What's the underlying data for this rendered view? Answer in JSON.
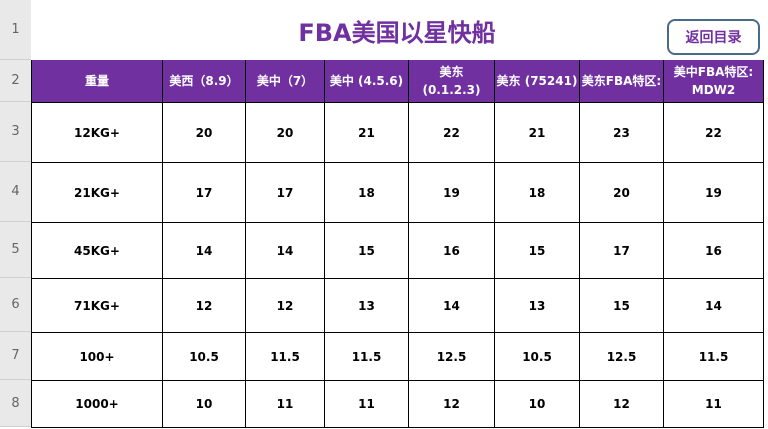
{
  "title": "FBA美国以星快船",
  "back_button": "返回目录",
  "row_numbers": [
    "1",
    "2",
    "3",
    "4",
    "5",
    "6",
    "7",
    "8"
  ],
  "headers": [
    "重量",
    "美西（8.9）",
    "美中（7）",
    "美中 (4.5.6)",
    "美东 (0.1.2.3)",
    "美东 (75241)",
    "美东FBA特区:",
    "美中FBA特区: MDW2"
  ],
  "rows": [
    [
      "12KG+",
      "20",
      "20",
      "21",
      "22",
      "21",
      "23",
      "22"
    ],
    [
      "21KG+",
      "17",
      "17",
      "18",
      "19",
      "18",
      "20",
      "19"
    ],
    [
      "45KG+",
      "14",
      "14",
      "15",
      "16",
      "15",
      "17",
      "16"
    ],
    [
      "71KG+",
      "12",
      "12",
      "13",
      "14",
      "13",
      "15",
      "14"
    ],
    [
      "100+",
      "10.5",
      "11.5",
      "11.5",
      "12.5",
      "10.5",
      "12.5",
      "11.5"
    ],
    [
      "1000+",
      "10",
      "11",
      "11",
      "12",
      "10",
      "12",
      "11"
    ]
  ],
  "colors": {
    "accent": "#7030a0"
  }
}
